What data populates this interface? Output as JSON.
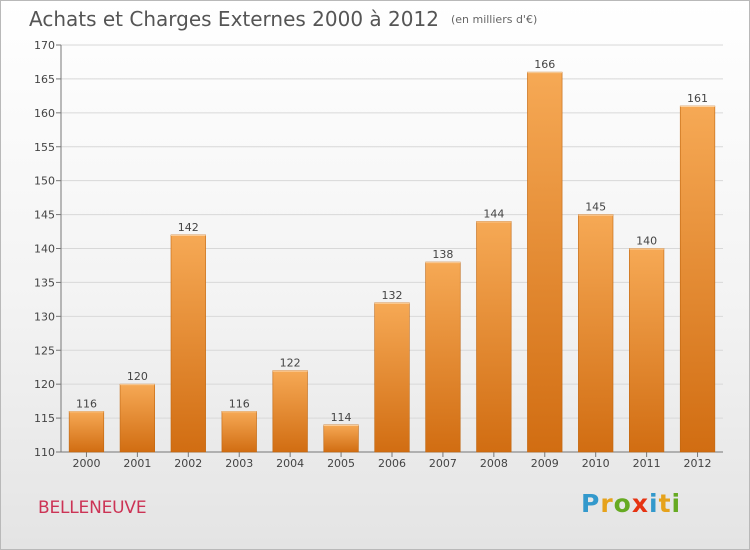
{
  "header": {
    "title": "Achats et Charges Externes 2000 à 2012",
    "unit": "(en milliers d'€)"
  },
  "commune": "BELLENEUVE",
  "logo": {
    "letters": [
      "P",
      "r",
      "o",
      "x",
      "i",
      "t",
      "i"
    ]
  },
  "colors": {
    "bar_top": "#f6a955",
    "bar_bottom": "#d16d12",
    "commune_text": "#cc3355"
  },
  "chart_data": {
    "type": "bar",
    "title": "Achats et Charges Externes 2000 à 2012",
    "subtitle": "(en milliers d'€)",
    "categories": [
      "2000",
      "2001",
      "2002",
      "2003",
      "2004",
      "2005",
      "2006",
      "2007",
      "2008",
      "2009",
      "2010",
      "2011",
      "2012"
    ],
    "values": [
      116,
      120,
      142,
      116,
      122,
      114,
      132,
      138,
      144,
      166,
      145,
      140,
      161
    ],
    "yticks": [
      110,
      115,
      120,
      125,
      130,
      135,
      140,
      145,
      150,
      155,
      160,
      165,
      170
    ],
    "ylim": [
      110,
      170
    ],
    "grid": true
  }
}
